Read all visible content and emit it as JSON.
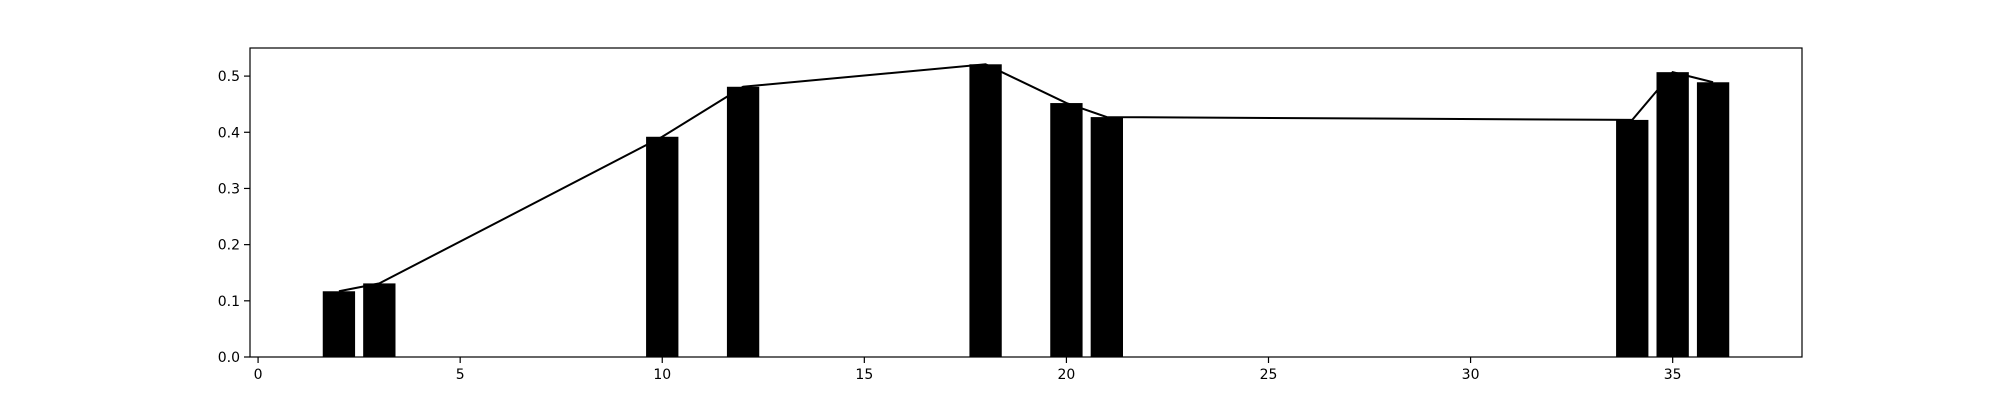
{
  "chart_data": {
    "type": "bar",
    "x": [
      2,
      3,
      10,
      12,
      18,
      20,
      21,
      34,
      35,
      36
    ],
    "values": [
      0.117,
      0.131,
      0.392,
      0.481,
      0.521,
      0.452,
      0.427,
      0.422,
      0.507,
      0.489
    ],
    "line_values": [
      0.117,
      0.131,
      0.392,
      0.481,
      0.521,
      0.452,
      0.427,
      0.422,
      0.507,
      0.489
    ],
    "title": "",
    "xlabel": "",
    "ylabel": "",
    "xlim": [
      -0.2,
      38.2
    ],
    "ylim": [
      0.0,
      0.55
    ],
    "bar_width": 0.8,
    "xticks": [
      0,
      5,
      10,
      15,
      20,
      25,
      30,
      35
    ],
    "xtick_labels": [
      "0",
      "5",
      "10",
      "15",
      "20",
      "25",
      "30",
      "35"
    ],
    "yticks": [
      0.0,
      0.1,
      0.2,
      0.3,
      0.4,
      0.5
    ],
    "ytick_labels": [
      "0.0",
      "0.1",
      "0.2",
      "0.3",
      "0.4",
      "0.5"
    ],
    "grid": false,
    "legend": "none",
    "bar_color": "#000000",
    "line_color": "#000000"
  }
}
